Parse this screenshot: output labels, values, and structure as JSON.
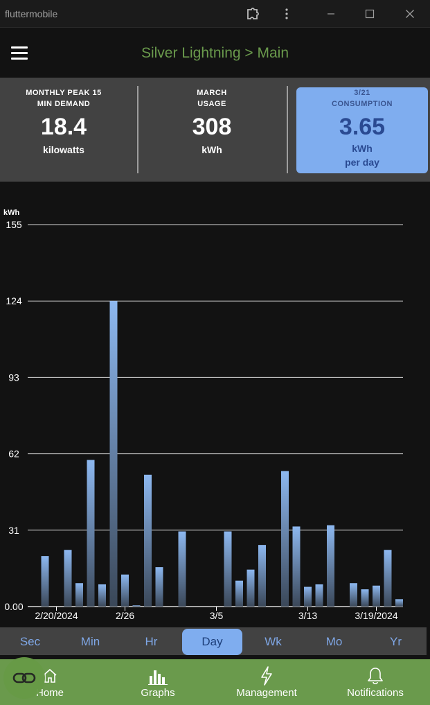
{
  "window": {
    "title": "fluttermobile"
  },
  "header": {
    "title": "Silver Lightning > Main"
  },
  "stats": [
    {
      "label_line1": "MONTHLY PEAK 15",
      "label_line2": "MIN DEMAND",
      "value": "18.4",
      "unit": "kilowatts"
    },
    {
      "label_line1": "MARCH",
      "label_line2": "USAGE",
      "value": "308",
      "unit": "kWh"
    },
    {
      "label_line1": "3/21",
      "label_line2": "CONSUMPTION",
      "value": "3.65",
      "unit": "kWh",
      "sub": "per day"
    }
  ],
  "periods": {
    "items": [
      "Sec",
      "Min",
      "Hr",
      "Day",
      "Wk",
      "Mo",
      "Yr"
    ],
    "active": "Day"
  },
  "nav": {
    "home": "Home",
    "graphs": "Graphs",
    "management": "Management",
    "notifications": "Notifications"
  },
  "colors": {
    "accent_green": "#6a9a4c",
    "accent_blue": "#7fadef",
    "bar_top": "#8db8f0",
    "bar_bottom": "#3a4758"
  },
  "chart_data": {
    "type": "bar",
    "ylabel": "kWh",
    "ylim": [
      0,
      155
    ],
    "yticks": [
      "0.00",
      "31",
      "62",
      "93",
      "124",
      "155"
    ],
    "xticks": [
      {
        "label": "2/20/2024",
        "index": 1
      },
      {
        "label": "2/26",
        "index": 7
      },
      {
        "label": "3/5",
        "index": 15
      },
      {
        "label": "3/13",
        "index": 23
      },
      {
        "label": "3/19/2024",
        "index": 29
      }
    ],
    "values": [
      20.5,
      0,
      23,
      9.5,
      59.5,
      9,
      124,
      13,
      0.5,
      53.5,
      16,
      0,
      30.5,
      0,
      0,
      0,
      30.5,
      10.5,
      15,
      25,
      0,
      55,
      32.5,
      8,
      9,
      33,
      0,
      9.5,
      7,
      8.5,
      23,
      3
    ]
  }
}
